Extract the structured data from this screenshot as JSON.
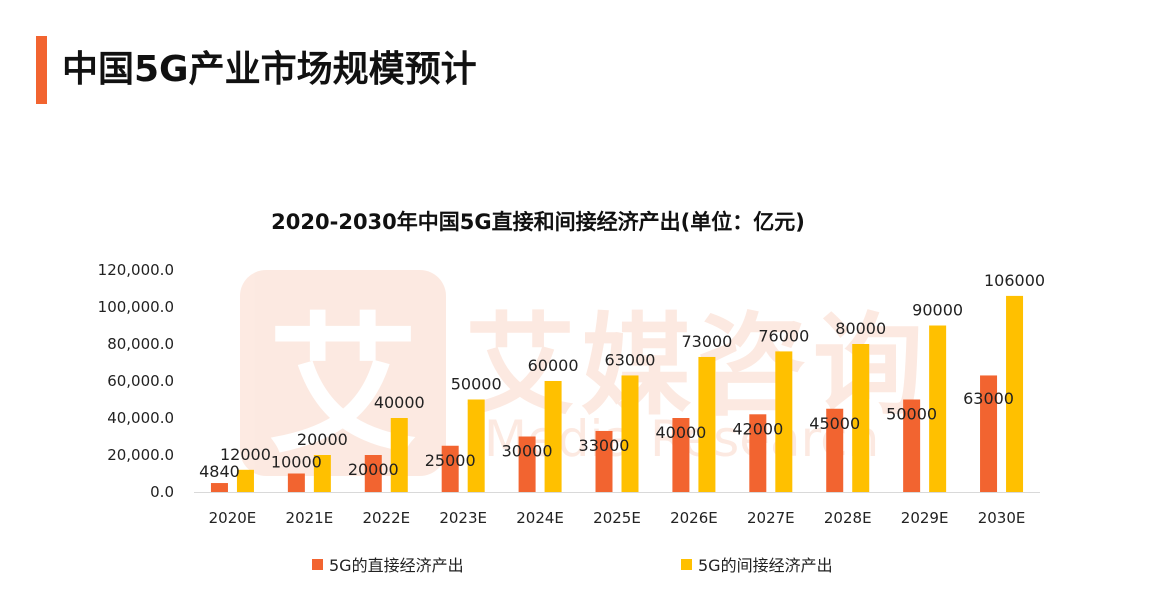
{
  "header": {
    "title": "中国5G产业市场规模预计",
    "accent_color": "#F26430"
  },
  "watermark": {
    "logo_glyph": "艾",
    "name": "艾媒咨询",
    "sub": "iMedia Research",
    "color": "#F4A07A"
  },
  "chart_data": {
    "type": "bar",
    "title": "2020-2030年中国5G直接和间接经济产出(单位：亿元)",
    "xlabel": "",
    "ylabel": "",
    "categories": [
      "2020E",
      "2021E",
      "2022E",
      "2023E",
      "2024E",
      "2025E",
      "2026E",
      "2027E",
      "2028E",
      "2029E",
      "2030E"
    ],
    "series": [
      {
        "name": "5G的直接经济产出",
        "color": "#F26430",
        "values": [
          4840,
          10000,
          20000,
          25000,
          30000,
          33000,
          40000,
          42000,
          45000,
          50000,
          63000
        ]
      },
      {
        "name": "5G的间接经济产出",
        "color": "#FFC000",
        "values": [
          12000,
          20000,
          40000,
          50000,
          60000,
          63000,
          73000,
          76000,
          80000,
          90000,
          106000
        ]
      }
    ],
    "ylim": [
      0,
      120000
    ],
    "yticks": [
      0,
      20000,
      40000,
      60000,
      80000,
      100000,
      120000
    ],
    "ytick_labels": [
      "0.0",
      "20,000.0",
      "40,000.0",
      "60,000.0",
      "80,000.0",
      "100,000.0",
      "120,000.0"
    ],
    "grid": false,
    "legend_position": "bottom"
  }
}
